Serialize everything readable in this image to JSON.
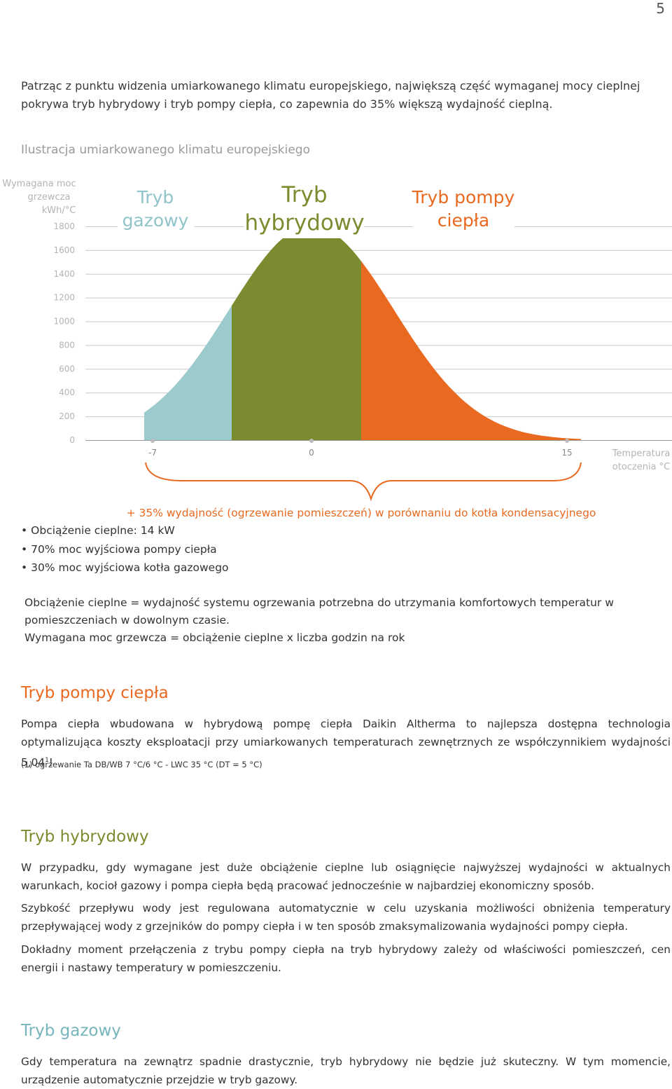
{
  "page_number": "5",
  "intro": "Patrząc z punktu widzenia umiarkowanego klimatu europejskiego, największą część wymaganej mocy cieplnej pokrywa tryb hybrydowy i tryb pompy ciepła, co zapewnia do 35% większą wydajność cieplną.",
  "subtitle": "Ilustracja umiarkowanego klimatu europejskiego",
  "chart_data": {
    "type": "area",
    "ylabel": [
      "Wymagana moc",
      "grzewcza",
      "kWh/°C"
    ],
    "xlabel": [
      "Temperatura",
      "otoczenia °C"
    ],
    "y_ticks": [
      "1800",
      "1600",
      "1400",
      "1200",
      "1000",
      "800",
      "600",
      "400",
      "200",
      "0"
    ],
    "ylim": [
      0,
      1800
    ],
    "x_ticks": [
      "-7",
      "0",
      "15"
    ],
    "regions": [
      {
        "label_lines": [
          "Tryb",
          "gazowy"
        ],
        "color": "#9ccbcd"
      },
      {
        "label_lines": [
          "Tryb",
          "hybrydowy"
        ],
        "color": "#7a8c2f"
      },
      {
        "label_lines": [
          "Tryb pompy",
          "ciepła"
        ],
        "color": "#e8691f"
      }
    ],
    "annotation": "+ 35% wydajność (ogrzewanie pomieszczeń) w porównaniu do kotła kondensacyjnego"
  },
  "bullets": [
    "Obciążenie cieplne: 14 kW",
    "70% moc wyjściowa pompy ciepła",
    "30% moc wyjściowa kotła gazowego"
  ],
  "definitions": [
    "Obciążenie cieplne = wydajność systemu ogrzewania potrzebna do utrzymania komfortowych temperatur w pomieszczeniach w dowolnym czasie.",
    "Wymagana moc grzewcza = obciążenie cieplne x liczba godzin na rok"
  ],
  "sections": {
    "heatpump": {
      "title": "Tryb pompy ciepła",
      "text": "Pompa ciepła wbudowana w hybrydową pompę ciepła Daikin Altherma to najlepsza dostępna technologia optymalizująca koszty eksploatacji przy umiarkowanych temperaturach zewnętrznych ze współczynnikiem wydajności 5,04",
      "sup": "1",
      "tail": "!",
      "footnote": "(1)  ogrzewanie Ta DB/WB 7 °C/6 °C - LWC 35 °C (DT = 5 °C)"
    },
    "hybrid": {
      "title": "Tryb hybrydowy",
      "p1": "W przypadku, gdy wymagane jest duże obciążenie cieplne lub osiągnięcie najwyższej wydajności w aktualnych warunkach, kocioł gazowy i pompa ciepła będą pracować jednocześnie w najbardziej ekonomiczny sposób.",
      "p2": "Szybkość przepływu wody jest regulowana automatycznie w celu uzyskania możliwości obniżenia temperatury przepływającej wody z grzejników do pompy ciepła i w ten sposób zmaksymalizowania wydajności pompy ciepła.",
      "p3": "Dokładny moment przełączenia z trybu pompy ciepła na tryb hybrydowy zależy od właściwości pomieszczeń, cen energii i nastawy temperatury w pomieszczeniu."
    },
    "gas": {
      "title": "Tryb gazowy",
      "text": "Gdy temperatura na zewnątrz spadnie drastycznie, tryb hybrydowy nie będzie już skuteczny. W tym momencie, urządzenie automatycznie przejdzie w tryb gazowy."
    }
  }
}
